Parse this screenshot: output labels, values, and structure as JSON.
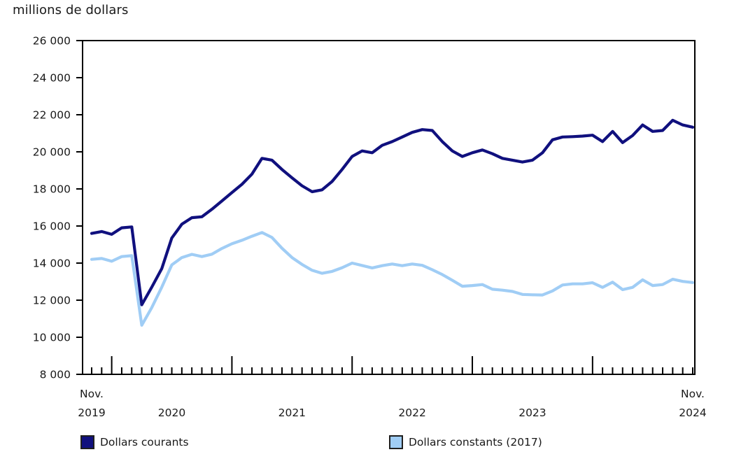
{
  "title": "millions de dollars",
  "colors": {
    "frame": "#000000",
    "text": "#1a1a1a",
    "series_current": "#10107E",
    "series_constant": "#A0CDF5"
  },
  "legend": {
    "items": [
      {
        "label": "Dollars courants",
        "color": "#10107E",
        "x": 115
      },
      {
        "label": "Dollars constants (2017)",
        "color": "#A0CDF5",
        "x": 556
      }
    ]
  },
  "chart_data": {
    "type": "line",
    "title": "millions de dollars",
    "ylabel": "millions de dollars",
    "xlabel": "",
    "grid": false,
    "legend_position": "bottom",
    "y_axis": {
      "min": 8000,
      "max": 26000,
      "step": 2000,
      "labels": [
        "26 000",
        "24 000",
        "22 000",
        "20 000",
        "18 000",
        "16 000",
        "14 000",
        "12 000",
        "10 000",
        "8 000"
      ]
    },
    "x_axis_labels": [
      {
        "top": "Nov.",
        "bottom": "2019",
        "anchor_month_index": 0
      },
      {
        "top": "",
        "bottom": "2020",
        "anchor_month_index": 8
      },
      {
        "top": "",
        "bottom": "2021",
        "anchor_month_index": 20
      },
      {
        "top": "",
        "bottom": "2022",
        "anchor_month_index": 32
      },
      {
        "top": "",
        "bottom": "2023",
        "anchor_month_index": 44
      },
      {
        "top": "Nov.",
        "bottom": "2024",
        "anchor_month_index": 60
      }
    ],
    "months": [
      "2019-11",
      "2019-12",
      "2020-01",
      "2020-02",
      "2020-03",
      "2020-04",
      "2020-05",
      "2020-06",
      "2020-07",
      "2020-08",
      "2020-09",
      "2020-10",
      "2020-11",
      "2020-12",
      "2021-01",
      "2021-02",
      "2021-03",
      "2021-04",
      "2021-05",
      "2021-06",
      "2021-07",
      "2021-08",
      "2021-09",
      "2021-10",
      "2021-11",
      "2021-12",
      "2022-01",
      "2022-02",
      "2022-03",
      "2022-04",
      "2022-05",
      "2022-06",
      "2022-07",
      "2022-08",
      "2022-09",
      "2022-10",
      "2022-11",
      "2022-12",
      "2023-01",
      "2023-02",
      "2023-03",
      "2023-04",
      "2023-05",
      "2023-06",
      "2023-07",
      "2023-08",
      "2023-09",
      "2023-10",
      "2023-11",
      "2023-12",
      "2024-01",
      "2024-02",
      "2024-03",
      "2024-04",
      "2024-05",
      "2024-06",
      "2024-07",
      "2024-08",
      "2024-09",
      "2024-10",
      "2024-11"
    ],
    "series": [
      {
        "name": "Dollars courants",
        "color": "#10107E",
        "values": [
          15600,
          15700,
          15550,
          15900,
          15950,
          11750,
          12700,
          13700,
          15350,
          16100,
          16450,
          16500,
          16900,
          17350,
          17800,
          18250,
          18800,
          19650,
          19550,
          19050,
          18600,
          18170,
          17850,
          17950,
          18400,
          19050,
          19750,
          20050,
          19950,
          20350,
          20550,
          20800,
          21050,
          21200,
          21150,
          20550,
          20050,
          19750,
          19950,
          20100,
          19900,
          19650,
          19550,
          19450,
          19550,
          19950,
          20650,
          20800,
          20820,
          20850,
          20900,
          20550,
          21100,
          20500,
          20880,
          21450,
          21100,
          21150,
          21700,
          21450,
          21330
        ]
      },
      {
        "name": "Dollars constants (2017)",
        "color": "#A0CDF5",
        "values": [
          14200,
          14250,
          14100,
          14350,
          14400,
          10650,
          11600,
          12700,
          13900,
          14300,
          14470,
          14350,
          14480,
          14790,
          15040,
          15230,
          15450,
          15650,
          15380,
          14800,
          14300,
          13930,
          13610,
          13450,
          13550,
          13750,
          14000,
          13870,
          13740,
          13860,
          13950,
          13860,
          13950,
          13880,
          13640,
          13380,
          13070,
          12750,
          12790,
          12840,
          12590,
          12540,
          12470,
          12310,
          12290,
          12280,
          12500,
          12820,
          12880,
          12880,
          12940,
          12690,
          12970,
          12570,
          12690,
          13100,
          12790,
          12840,
          13130,
          13010,
          12950
        ]
      }
    ]
  }
}
